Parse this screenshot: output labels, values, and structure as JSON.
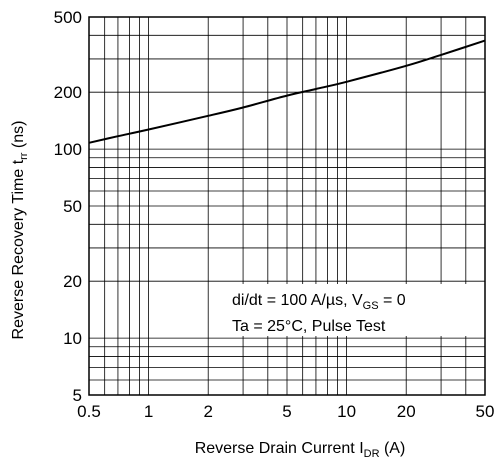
{
  "chart_data": {
    "type": "line",
    "xscale": "log",
    "yscale": "log",
    "xlim": [
      0.5,
      50
    ],
    "ylim": [
      5,
      500
    ],
    "grid": true,
    "x_ticks": [
      0.5,
      1,
      2,
      5,
      10,
      20,
      50
    ],
    "x_tick_labels": [
      "0.5",
      "1",
      "2",
      "5",
      "10",
      "20",
      "50"
    ],
    "y_ticks": [
      5,
      10,
      20,
      50,
      100,
      200,
      500
    ],
    "y_tick_labels": [
      "5",
      "10",
      "20",
      "50",
      "100",
      "200",
      "500"
    ],
    "title": "",
    "xlabel": {
      "text": "Reverse Drain Current  I",
      "sub": "DR",
      "after": "  (A)"
    },
    "ylabel": {
      "text": "Reverse Recovery Time  t",
      "sub": "rr",
      "after": "  (ns)"
    },
    "annotation": {
      "line1": {
        "text": "di/dt = 100 A/µs, V",
        "sub": "GS",
        "after": " = 0"
      },
      "line2": "Ta = 25°C, Pulse Test"
    },
    "series": [
      {
        "x": [
          0.5,
          0.7,
          1,
          2,
          3,
          5,
          7,
          10,
          20,
          30,
          50
        ],
        "y": [
          108,
          117,
          127,
          150,
          166,
          192,
          208,
          227,
          276,
          315,
          375
        ]
      }
    ]
  }
}
